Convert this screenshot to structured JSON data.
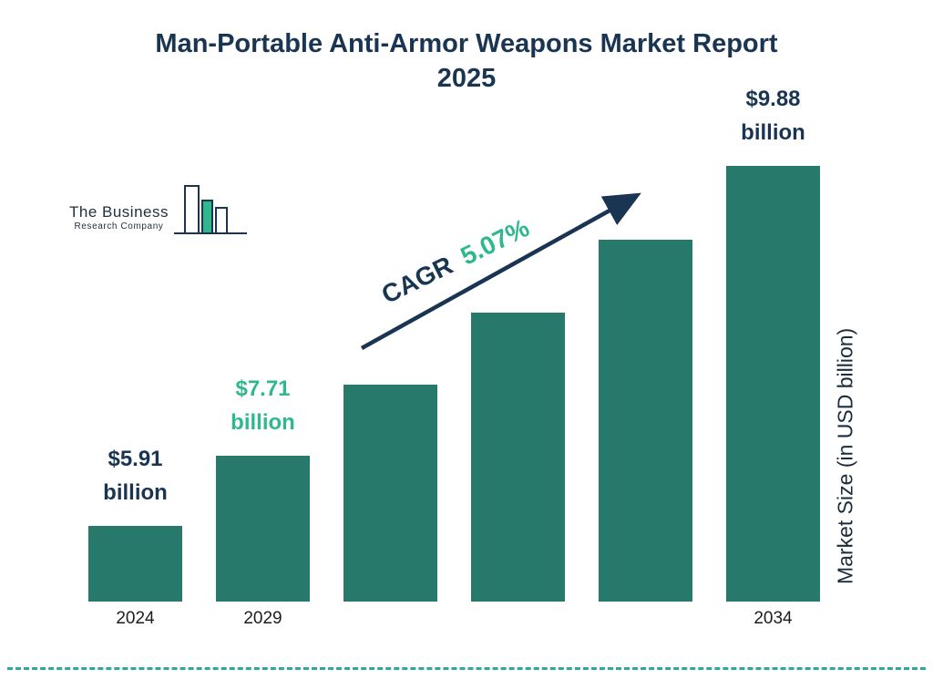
{
  "title": {
    "line1": "Man-Portable Anti-Armor Weapons Market Report",
    "line2": "2025"
  },
  "logo": {
    "line1": "The Business",
    "line2": "Research Company"
  },
  "cagr": {
    "prefix": "CAGR",
    "value": "5.07%"
  },
  "y_axis_label": "Market Size (in USD billion)",
  "colors": {
    "bar": "#26796B",
    "navy": "#1A3552",
    "teal": "#2FB78D",
    "dashed_line": "#2FA79B"
  },
  "chart_data": {
    "type": "bar",
    "title": "Man-Portable Anti-Armor Weapons Market Report 2025",
    "categories": [
      "2024",
      "2029",
      "",
      "",
      "",
      "2034"
    ],
    "values": [
      5.91,
      7.71,
      8.25,
      8.8,
      9.35,
      9.88
    ],
    "labeled_values": [
      {
        "index": 0,
        "year": "2024",
        "value": 5.91,
        "text_line1": "$5.91",
        "text_line2": "billion",
        "color": "navy"
      },
      {
        "index": 1,
        "year": "2029",
        "value": 7.71,
        "text_line1": "$7.71",
        "text_line2": "billion",
        "color": "teal"
      },
      {
        "index": 5,
        "year": "2034",
        "value": 9.88,
        "text_line1": "$9.88",
        "text_line2": "billion",
        "color": "navy"
      }
    ],
    "cagr": "5.07%",
    "xlabel": "",
    "ylabel": "Market Size (in USD billion)",
    "legend": false,
    "grid": false,
    "bar_height_fracs": [
      0.174,
      0.335,
      0.498,
      0.663,
      0.83,
      1.0
    ]
  }
}
